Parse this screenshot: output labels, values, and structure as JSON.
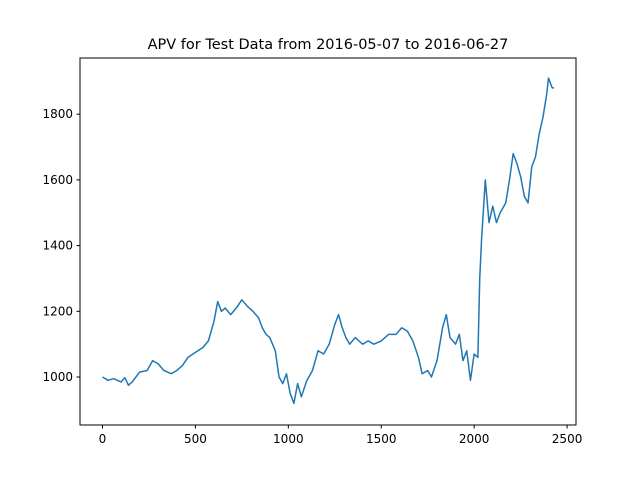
{
  "chart_data": {
    "type": "line",
    "title": "APV for Test Data from 2016-05-07 to 2016-06-27",
    "x": [
      0,
      30,
      60,
      100,
      120,
      140,
      160,
      200,
      240,
      270,
      300,
      330,
      370,
      400,
      430,
      460,
      500,
      540,
      570,
      600,
      620,
      640,
      660,
      690,
      720,
      750,
      780,
      810,
      840,
      860,
      880,
      900,
      930,
      950,
      970,
      990,
      1010,
      1030,
      1050,
      1070,
      1100,
      1130,
      1160,
      1190,
      1220,
      1250,
      1270,
      1290,
      1310,
      1330,
      1360,
      1400,
      1430,
      1460,
      1500,
      1540,
      1580,
      1610,
      1640,
      1670,
      1700,
      1720,
      1750,
      1770,
      1800,
      1830,
      1850,
      1870,
      1900,
      1920,
      1940,
      1960,
      1980,
      2000,
      2020,
      2030,
      2040,
      2060,
      2080,
      2100,
      2120,
      2140,
      2170,
      2190,
      2210,
      2230,
      2250,
      2270,
      2290,
      2310,
      2330,
      2350,
      2370,
      2390,
      2400,
      2420,
      2430
    ],
    "series": [
      {
        "color": "#1f77b4",
        "values": [
          1000,
          990,
          995,
          985,
          998,
          975,
          985,
          1015,
          1020,
          1050,
          1040,
          1020,
          1010,
          1020,
          1035,
          1060,
          1075,
          1090,
          1110,
          1170,
          1230,
          1200,
          1210,
          1190,
          1210,
          1235,
          1215,
          1200,
          1180,
          1150,
          1130,
          1120,
          1080,
          1000,
          980,
          1010,
          950,
          920,
          980,
          940,
          990,
          1020,
          1080,
          1070,
          1100,
          1160,
          1190,
          1150,
          1120,
          1100,
          1120,
          1100,
          1110,
          1100,
          1110,
          1130,
          1130,
          1150,
          1140,
          1110,
          1060,
          1010,
          1020,
          1000,
          1050,
          1150,
          1190,
          1120,
          1100,
          1130,
          1050,
          1080,
          990,
          1070,
          1060,
          1300,
          1420,
          1600,
          1470,
          1520,
          1470,
          1500,
          1530,
          1600,
          1680,
          1650,
          1610,
          1550,
          1530,
          1640,
          1670,
          1740,
          1790,
          1860,
          1910,
          1880,
          1880
        ]
      }
    ],
    "xlim": [
      -121,
      2548
    ],
    "ylim": [
      854,
      1971
    ],
    "xticks": [
      0,
      500,
      1000,
      1500,
      2000,
      2500
    ],
    "yticks": [
      1000,
      1200,
      1400,
      1600,
      1800
    ],
    "grid": false
  }
}
